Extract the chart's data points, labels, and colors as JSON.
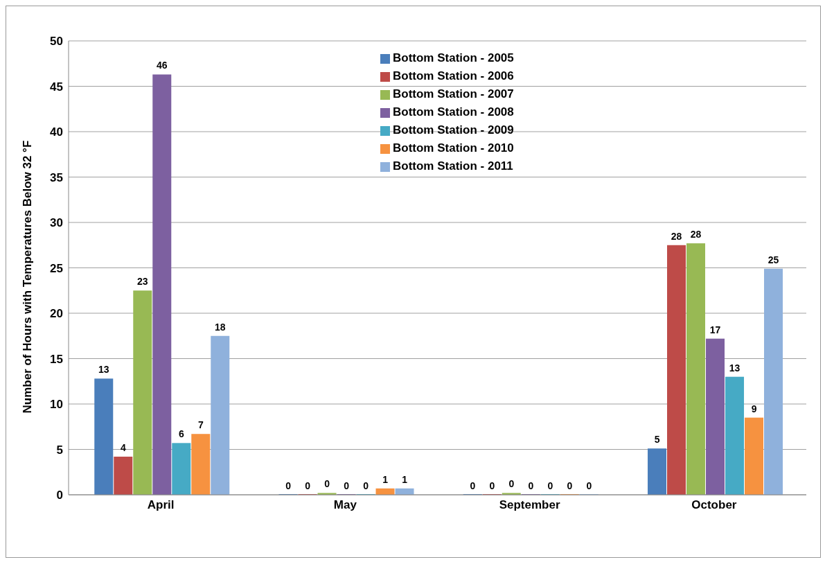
{
  "chart_data": {
    "type": "bar",
    "ylabel": "Number of Hours with Temperatures Below 32 °F",
    "categories": [
      "April",
      "May",
      "September",
      "October"
    ],
    "series": [
      {
        "name": "Bottom Station - 2005",
        "color": "#4a7ebb",
        "values": [
          12.8,
          0,
          0,
          5.1
        ],
        "value_labels": [
          "13",
          "0",
          "0",
          "5"
        ]
      },
      {
        "name": "Bottom Station - 2006",
        "color": "#be4b48",
        "values": [
          4.2,
          0,
          0,
          27.5
        ],
        "value_labels": [
          "4",
          "0",
          "0",
          "28"
        ]
      },
      {
        "name": "Bottom Station - 2007",
        "color": "#98b954",
        "values": [
          22.5,
          0.2,
          0.2,
          27.7
        ],
        "value_labels": [
          "23",
          "0",
          "0",
          "28"
        ]
      },
      {
        "name": "Bottom Station - 2008",
        "color": "#7d60a0",
        "values": [
          46.3,
          0,
          0,
          17.2
        ],
        "value_labels": [
          "46",
          "0",
          "0",
          "17"
        ]
      },
      {
        "name": "Bottom Station - 2009",
        "color": "#46aac5",
        "values": [
          5.7,
          0,
          0,
          13.0
        ],
        "value_labels": [
          "6",
          "0",
          "0",
          "13"
        ]
      },
      {
        "name": "Bottom Station - 2010",
        "color": "#f69240",
        "values": [
          6.7,
          0.7,
          0,
          8.5
        ],
        "value_labels": [
          "7",
          "1",
          "0",
          "9"
        ]
      },
      {
        "name": "Bottom Station - 2011",
        "color": "#8fb1dc",
        "values": [
          17.5,
          0.7,
          0,
          24.9
        ],
        "value_labels": [
          "18",
          "1",
          "0",
          "25"
        ]
      }
    ],
    "ylim": [
      0,
      50
    ],
    "yticks": [
      0,
      5,
      10,
      15,
      20,
      25,
      30,
      35,
      40,
      45,
      50
    ],
    "grid": "y",
    "legend": "top"
  }
}
